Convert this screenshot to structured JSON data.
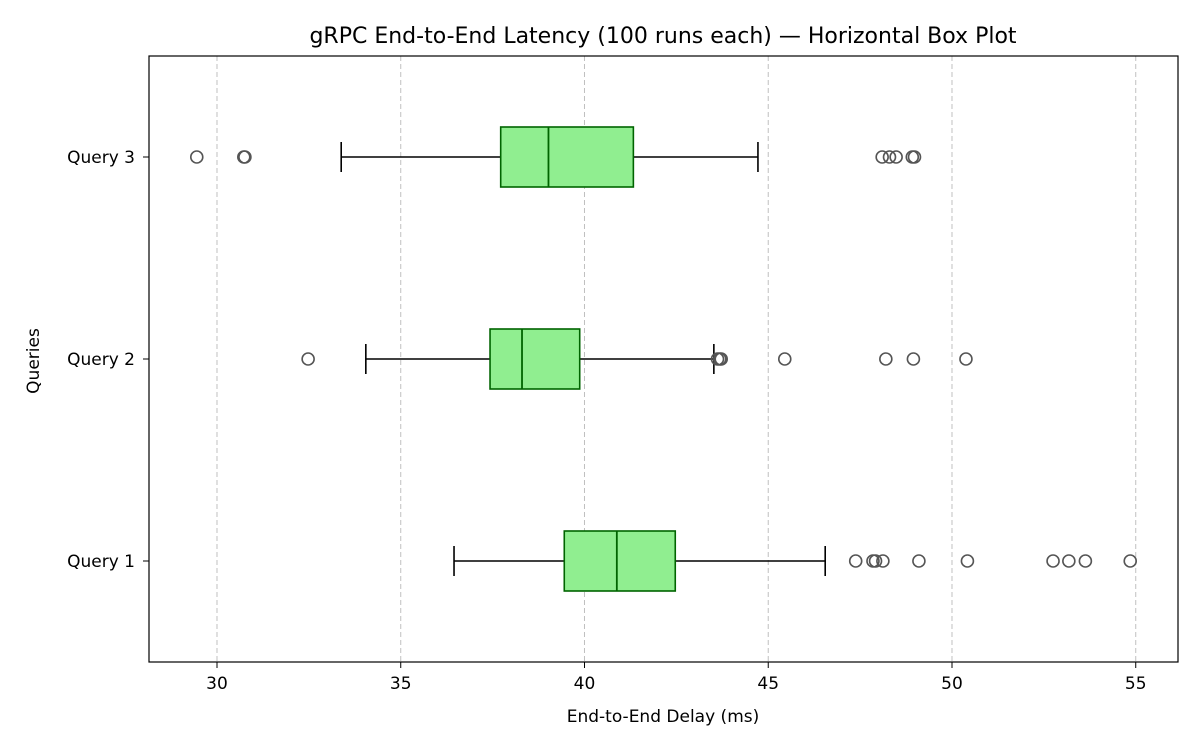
{
  "chart_data": {
    "type": "box",
    "orientation": "horizontal",
    "title": "gRPC End-to-End Latency (100 runs each) — Horizontal Box Plot",
    "xlabel": "End-to-End Delay (ms)",
    "ylabel": "Queries",
    "xlim": [
      28.15,
      56.15
    ],
    "xticks": [
      30,
      35,
      40,
      45,
      50,
      55
    ],
    "grid": "x-dashed",
    "colors": {
      "box_fill": "#90ee90",
      "box_edge": "#006400",
      "median": "#006400",
      "whisker": "#000000",
      "outlier": "#555555",
      "grid": "#c0c0c0"
    },
    "categories": [
      "Query 1",
      "Query 2",
      "Query 3"
    ],
    "boxes": [
      {
        "name": "Query 1",
        "whisker_low": 36.45,
        "q1": 39.45,
        "median": 40.88,
        "q3": 42.47,
        "whisker_high": 46.55,
        "outliers": [
          47.38,
          47.85,
          47.92,
          48.12,
          49.1,
          50.42,
          52.75,
          53.18,
          53.63,
          54.85
        ]
      },
      {
        "name": "Query 2",
        "whisker_low": 34.05,
        "q1": 37.43,
        "median": 38.3,
        "q3": 39.87,
        "whisker_high": 43.52,
        "outliers": [
          32.48,
          43.62,
          43.68,
          43.72,
          45.45,
          48.2,
          48.95,
          50.38
        ]
      },
      {
        "name": "Query 3",
        "whisker_low": 33.38,
        "q1": 37.72,
        "median": 39.02,
        "q3": 41.33,
        "whisker_high": 44.72,
        "outliers": [
          29.45,
          30.73,
          30.76,
          48.1,
          48.3,
          48.48,
          48.92,
          48.98
        ]
      }
    ]
  }
}
